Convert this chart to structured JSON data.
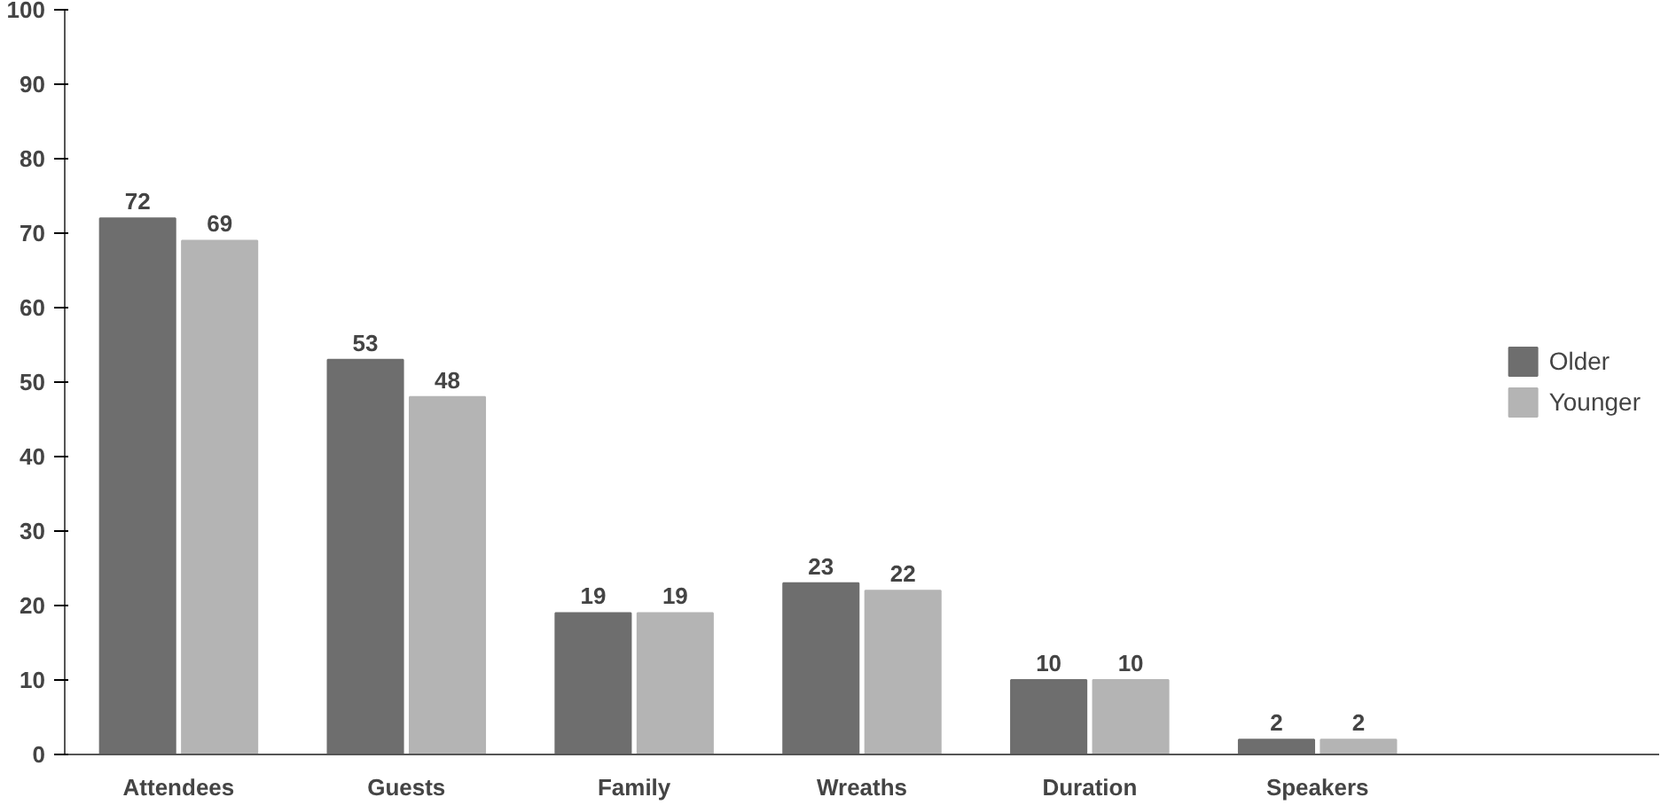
{
  "chart_data": {
    "type": "bar",
    "categories": [
      "Attendees",
      "Guests",
      "Family",
      "Wreaths",
      "Duration",
      "Speakers"
    ],
    "series": [
      {
        "name": "Older",
        "color": "#6e6e6e",
        "values": [
          72,
          53,
          19,
          23,
          10,
          2
        ]
      },
      {
        "name": "Younger",
        "color": "#b4b4b4",
        "values": [
          69,
          48,
          19,
          22,
          10,
          2
        ]
      }
    ],
    "ylim": [
      0,
      100
    ],
    "yticks": [
      0,
      10,
      20,
      30,
      40,
      50,
      60,
      70,
      80,
      90,
      100
    ],
    "data_labels": true,
    "legend": "right",
    "grid": false
  }
}
